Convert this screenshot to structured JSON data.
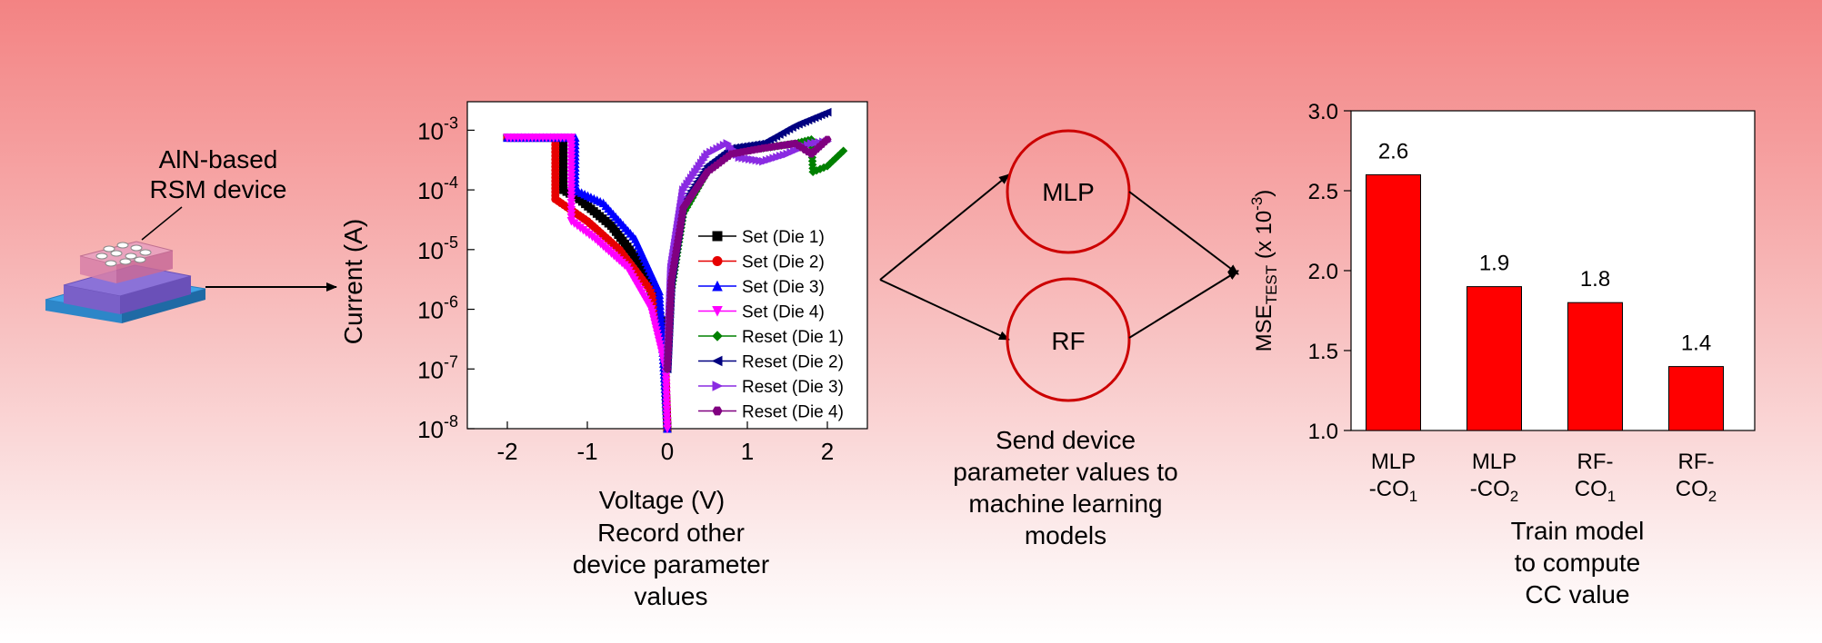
{
  "device": {
    "label_line1": "AlN-based",
    "label_line2": "RSM device"
  },
  "iv_plot": {
    "ylabel": "Current  (A)",
    "xlabel": "Voltage  (V)",
    "y_ticks": [
      "10",
      "10",
      "10",
      "10",
      "10",
      "10"
    ],
    "y_tick_exps": [
      "-3",
      "-4",
      "-5",
      "-6",
      "-7",
      "-8"
    ],
    "x_ticks": [
      "-2",
      "-1",
      "0",
      "1",
      "2"
    ],
    "legend": [
      {
        "name": "Set (Die 1)",
        "color": "#000000",
        "marker": "square"
      },
      {
        "name": "Set (Die 2)",
        "color": "#e60000",
        "marker": "circle"
      },
      {
        "name": "Set (Die 3)",
        "color": "#0000ff",
        "marker": "triangle-up"
      },
      {
        "name": "Set (Die 4)",
        "color": "#ff00ff",
        "marker": "triangle-down"
      },
      {
        "name": "Reset (Die 1)",
        "color": "#008000",
        "marker": "diamond"
      },
      {
        "name": "Reset (Die 2)",
        "color": "#000080",
        "marker": "triangle-left"
      },
      {
        "name": "Reset (Die 3)",
        "color": "#8a2be2",
        "marker": "triangle-right"
      },
      {
        "name": "Reset (Die 4)",
        "color": "#800080",
        "marker": "hexagon"
      }
    ],
    "caption": [
      "Record other",
      "device parameter",
      "values"
    ]
  },
  "models": {
    "mlp": "MLP",
    "rf": "RF",
    "caption": [
      "Send device",
      "parameter values to",
      "machine learning",
      "models"
    ]
  },
  "bar_chart": {
    "ylabel_main": "MSE",
    "ylabel_sub": "TEST",
    "ylabel_tail": " (x 10",
    "ylabel_exp": "-3",
    "ylabel_close": ")",
    "caption": [
      "Train model",
      "to compute",
      "CC value"
    ]
  },
  "chart_data": [
    {
      "type": "line",
      "xlabel": "Voltage  (V)",
      "ylabel": "Current  (A)",
      "xlim": [
        -2.5,
        2.5
      ],
      "ylim": [
        1e-08,
        0.003
      ],
      "yscale": "log",
      "legend_position": "bottom-right",
      "series": [
        {
          "name": "Set (Die 1)",
          "color": "#000000",
          "x": [
            -2.0,
            -1.3,
            -1.3,
            -1.1,
            -0.7,
            -0.3,
            -0.05,
            0.0
          ],
          "y": [
            0.00075,
            0.00075,
            0.0001,
            7e-05,
            2.5e-05,
            5e-06,
            5e-07,
            1e-08
          ]
        },
        {
          "name": "Set (Die 2)",
          "color": "#e60000",
          "x": [
            -2.0,
            -1.4,
            -1.4,
            -1.0,
            -0.6,
            -0.2,
            -0.03,
            0.0
          ],
          "y": [
            0.00075,
            0.00075,
            7e-05,
            3e-05,
            1e-05,
            2e-06,
            2e-07,
            1e-08
          ]
        },
        {
          "name": "Set (Die 3)",
          "color": "#0000ff",
          "x": [
            -2.0,
            -1.15,
            -1.15,
            -0.8,
            -0.4,
            -0.1,
            0.0
          ],
          "y": [
            0.00075,
            0.00075,
            0.0001,
            6e-05,
            1.5e-05,
            2e-06,
            1e-08
          ]
        },
        {
          "name": "Set (Die 4)",
          "color": "#ff00ff",
          "x": [
            -2.0,
            -1.2,
            -1.2,
            -0.9,
            -0.5,
            -0.2,
            -0.02,
            0.0
          ],
          "y": [
            0.00075,
            0.00075,
            3e-05,
            1.5e-05,
            5e-06,
            1e-06,
            1e-07,
            1e-08
          ]
        },
        {
          "name": "Reset (Die 1)",
          "color": "#008000",
          "x": [
            0.0,
            0.05,
            0.2,
            0.5,
            0.8,
            1.2,
            1.6,
            1.8,
            1.82,
            2.0,
            2.2
          ],
          "y": [
            1e-07,
            2e-06,
            4e-05,
            0.0002,
            0.00045,
            0.0005,
            0.0006,
            0.0007,
            0.0002,
            0.00025,
            0.00045
          ]
        },
        {
          "name": "Reset (Die 2)",
          "color": "#000080",
          "x": [
            0.0,
            0.05,
            0.2,
            0.5,
            0.8,
            1.2,
            1.6,
            2.0
          ],
          "y": [
            1e-07,
            3e-06,
            6e-05,
            0.00025,
            0.0005,
            0.0006,
            0.0012,
            0.002
          ]
        },
        {
          "name": "Reset (Die 3)",
          "color": "#8a2be2",
          "x": [
            0.0,
            0.05,
            0.2,
            0.5,
            0.75,
            0.9,
            1.2,
            1.5,
            1.8,
            2.0
          ],
          "y": [
            1e-07,
            5e-06,
            0.0001,
            0.0004,
            0.0006,
            0.00035,
            0.0003,
            0.0004,
            0.0006,
            0.00065
          ]
        },
        {
          "name": "Reset (Die 4)",
          "color": "#800080",
          "x": [
            0.0,
            0.05,
            0.2,
            0.5,
            0.8,
            1.2,
            1.6,
            1.8,
            2.0
          ],
          "y": [
            1e-07,
            3e-06,
            5e-05,
            0.0002,
            0.0004,
            0.0005,
            0.0006,
            0.0004,
            0.0007
          ]
        }
      ]
    },
    {
      "type": "bar",
      "categories": [
        {
          "line1": "MLP",
          "line2": "-CO",
          "sub": "1"
        },
        {
          "line1": "MLP",
          "line2": "-CO",
          "sub": "2"
        },
        {
          "line1": "RF-",
          "line2": "CO",
          "sub": "1"
        },
        {
          "line1": "RF-",
          "line2": "CO",
          "sub": "2"
        }
      ],
      "values": [
        2.6,
        1.9,
        1.8,
        1.4
      ],
      "value_labels": [
        "2.6",
        "1.9",
        "1.8",
        "1.4"
      ],
      "y_ticks": [
        "3.0",
        "2.5",
        "2.0",
        "1.5",
        "1.0"
      ],
      "ylim": [
        1.0,
        3.0
      ],
      "bar_color": "#ff0000",
      "grid": false
    }
  ]
}
